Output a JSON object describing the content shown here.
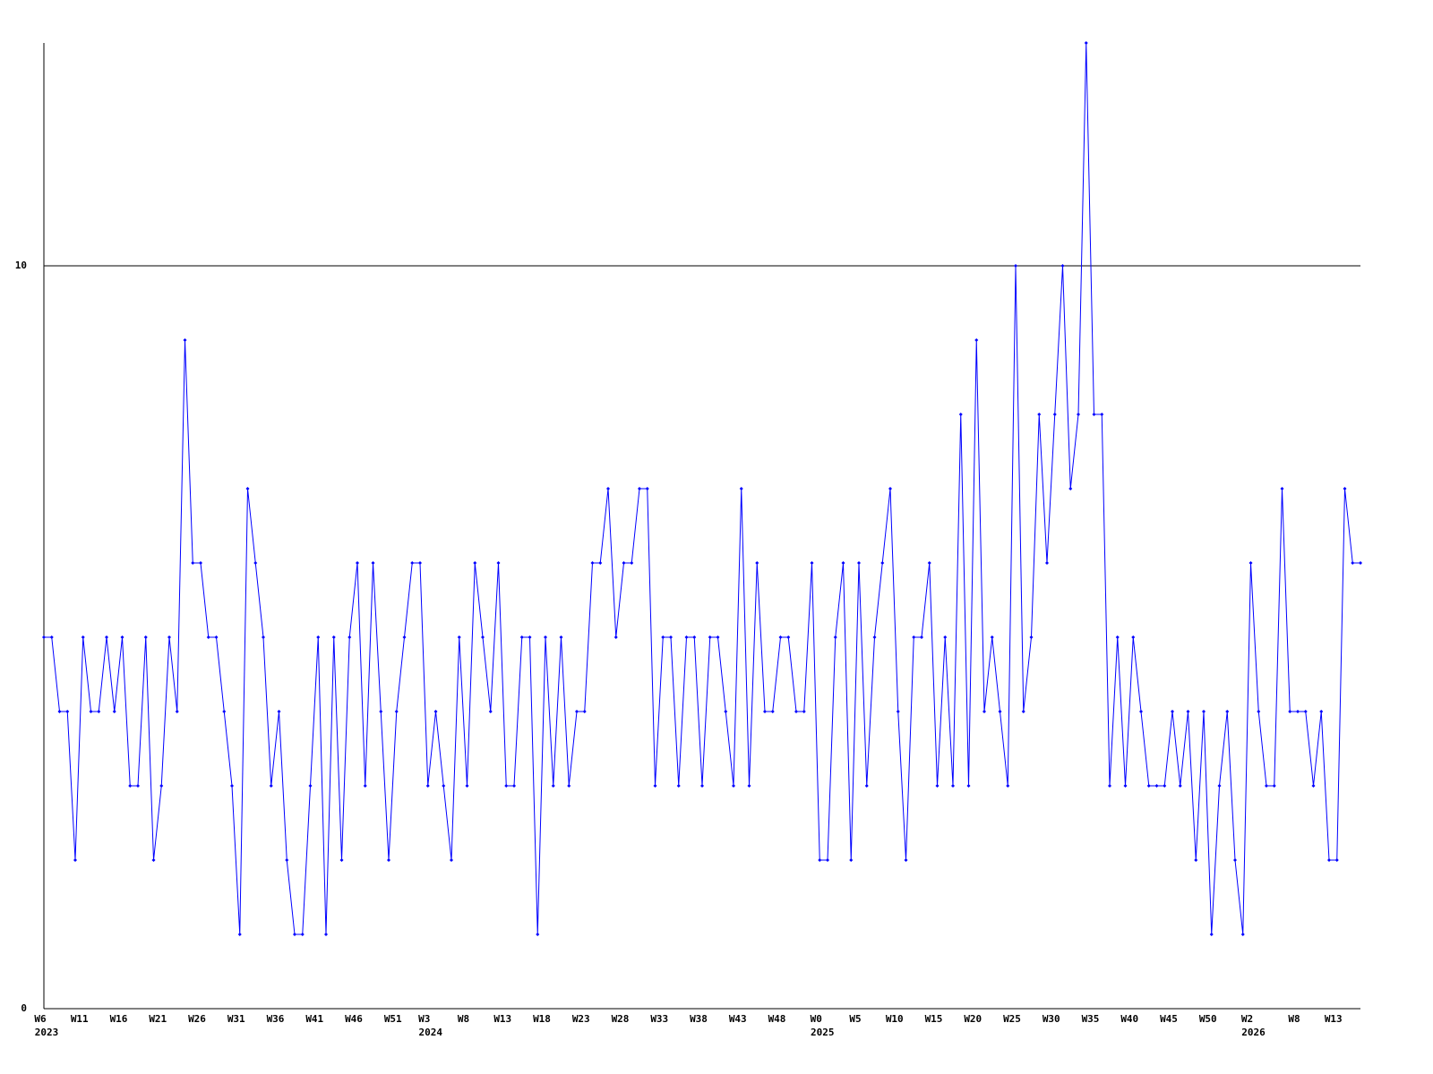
{
  "chart_data": {
    "type": "line",
    "categories": [
      "W6",
      null,
      null,
      null,
      null,
      "W11",
      null,
      null,
      null,
      null,
      "W16",
      null,
      null,
      null,
      null,
      "W21",
      null,
      null,
      null,
      null,
      "W26",
      null,
      null,
      null,
      null,
      "W31",
      null,
      null,
      null,
      null,
      "W36",
      null,
      null,
      null,
      null,
      "W41",
      null,
      null,
      null,
      null,
      "W46",
      null,
      null,
      null,
      null,
      "W51",
      null,
      null,
      null,
      "W3",
      null,
      null,
      null,
      null,
      "W8",
      null,
      null,
      null,
      null,
      "W13",
      null,
      null,
      null,
      null,
      "W18",
      null,
      null,
      null,
      null,
      "W23",
      null,
      null,
      null,
      null,
      "W28",
      null,
      null,
      null,
      null,
      "W33",
      null,
      null,
      null,
      null,
      "W38",
      null,
      null,
      null,
      null,
      "W43",
      null,
      null,
      null,
      null,
      "W48",
      null,
      null,
      null,
      null,
      "W0",
      null,
      null,
      null,
      null,
      "W5",
      null,
      null,
      null,
      null,
      "W10",
      null,
      null,
      null,
      null,
      "W15",
      null,
      null,
      null,
      null,
      "W20",
      null,
      null,
      null,
      null,
      "W25",
      null,
      null,
      null,
      null,
      "W30",
      null,
      null,
      null,
      null,
      "W35",
      null,
      null,
      null,
      null,
      "W40",
      null,
      null,
      null,
      null,
      "W45",
      null,
      null,
      null,
      null,
      "W50",
      null,
      null,
      null,
      null,
      "W2",
      null,
      null,
      null,
      null,
      null,
      "W8",
      null,
      null,
      null,
      null,
      "W13",
      null,
      null,
      null
    ],
    "x_years": [
      "2023",
      null,
      null,
      null,
      null,
      null,
      null,
      null,
      null,
      null,
      null,
      null,
      null,
      null,
      null,
      null,
      null,
      null,
      null,
      null,
      null,
      null,
      null,
      null,
      null,
      null,
      null,
      null,
      null,
      null,
      null,
      null,
      null,
      null,
      null,
      null,
      null,
      null,
      null,
      null,
      null,
      null,
      null,
      null,
      null,
      null,
      null,
      null,
      null,
      "2024",
      null,
      null,
      null,
      null,
      null,
      null,
      null,
      null,
      null,
      null,
      null,
      null,
      null,
      null,
      null,
      null,
      null,
      null,
      null,
      null,
      null,
      null,
      null,
      null,
      null,
      null,
      null,
      null,
      null,
      null,
      null,
      null,
      null,
      null,
      null,
      null,
      null,
      null,
      null,
      null,
      null,
      null,
      null,
      null,
      null,
      null,
      null,
      null,
      null,
      "2025",
      null,
      null,
      null,
      null,
      null,
      null,
      null,
      null,
      null,
      null,
      null,
      null,
      null,
      null,
      null,
      null,
      null,
      null,
      null,
      null,
      null,
      null,
      null,
      null,
      null,
      null,
      null,
      null,
      null,
      null,
      null,
      null,
      null,
      null,
      null,
      null,
      null,
      null,
      null,
      null,
      null,
      null,
      null,
      null,
      null,
      null,
      null,
      null,
      null,
      null,
      null,
      null,
      null,
      null,
      "2026",
      null,
      null,
      null,
      null,
      null,
      null,
      null,
      null,
      null,
      null,
      null,
      null,
      null,
      null
    ],
    "values": [
      5,
      5,
      4,
      4,
      2,
      5,
      4,
      4,
      5,
      4,
      5,
      3,
      3,
      5,
      2,
      3,
      5,
      4,
      9,
      6,
      6,
      5,
      5,
      4,
      3,
      1,
      7,
      6,
      5,
      3,
      4,
      2,
      1,
      1,
      3,
      5,
      1,
      5,
      2,
      5,
      6,
      3,
      6,
      4,
      2,
      4,
      5,
      6,
      6,
      3,
      4,
      3,
      2,
      5,
      3,
      6,
      5,
      4,
      6,
      3,
      3,
      5,
      5,
      1,
      5,
      3,
      5,
      3,
      4,
      4,
      6,
      6,
      7,
      5,
      6,
      6,
      7,
      7,
      3,
      5,
      5,
      3,
      5,
      5,
      3,
      5,
      5,
      4,
      3,
      7,
      3,
      6,
      4,
      4,
      5,
      5,
      4,
      4,
      6,
      2,
      2,
      5,
      6,
      2,
      6,
      3,
      5,
      6,
      7,
      4,
      2,
      5,
      5,
      6,
      3,
      5,
      3,
      8,
      3,
      9,
      4,
      5,
      4,
      3,
      10,
      4,
      5,
      8,
      6,
      8,
      10,
      7,
      8,
      13,
      8,
      8,
      3,
      5,
      3,
      5,
      4,
      3,
      3,
      3,
      4,
      3,
      4,
      2,
      4,
      1,
      3,
      4,
      2,
      1,
      6,
      4,
      3,
      3,
      7,
      4,
      4,
      4,
      3,
      4,
      2,
      2,
      7,
      6,
      6
    ],
    "color": "#0000ff",
    "ylim": [
      0,
      13
    ],
    "yticks": [
      0,
      10
    ],
    "grid": true
  }
}
